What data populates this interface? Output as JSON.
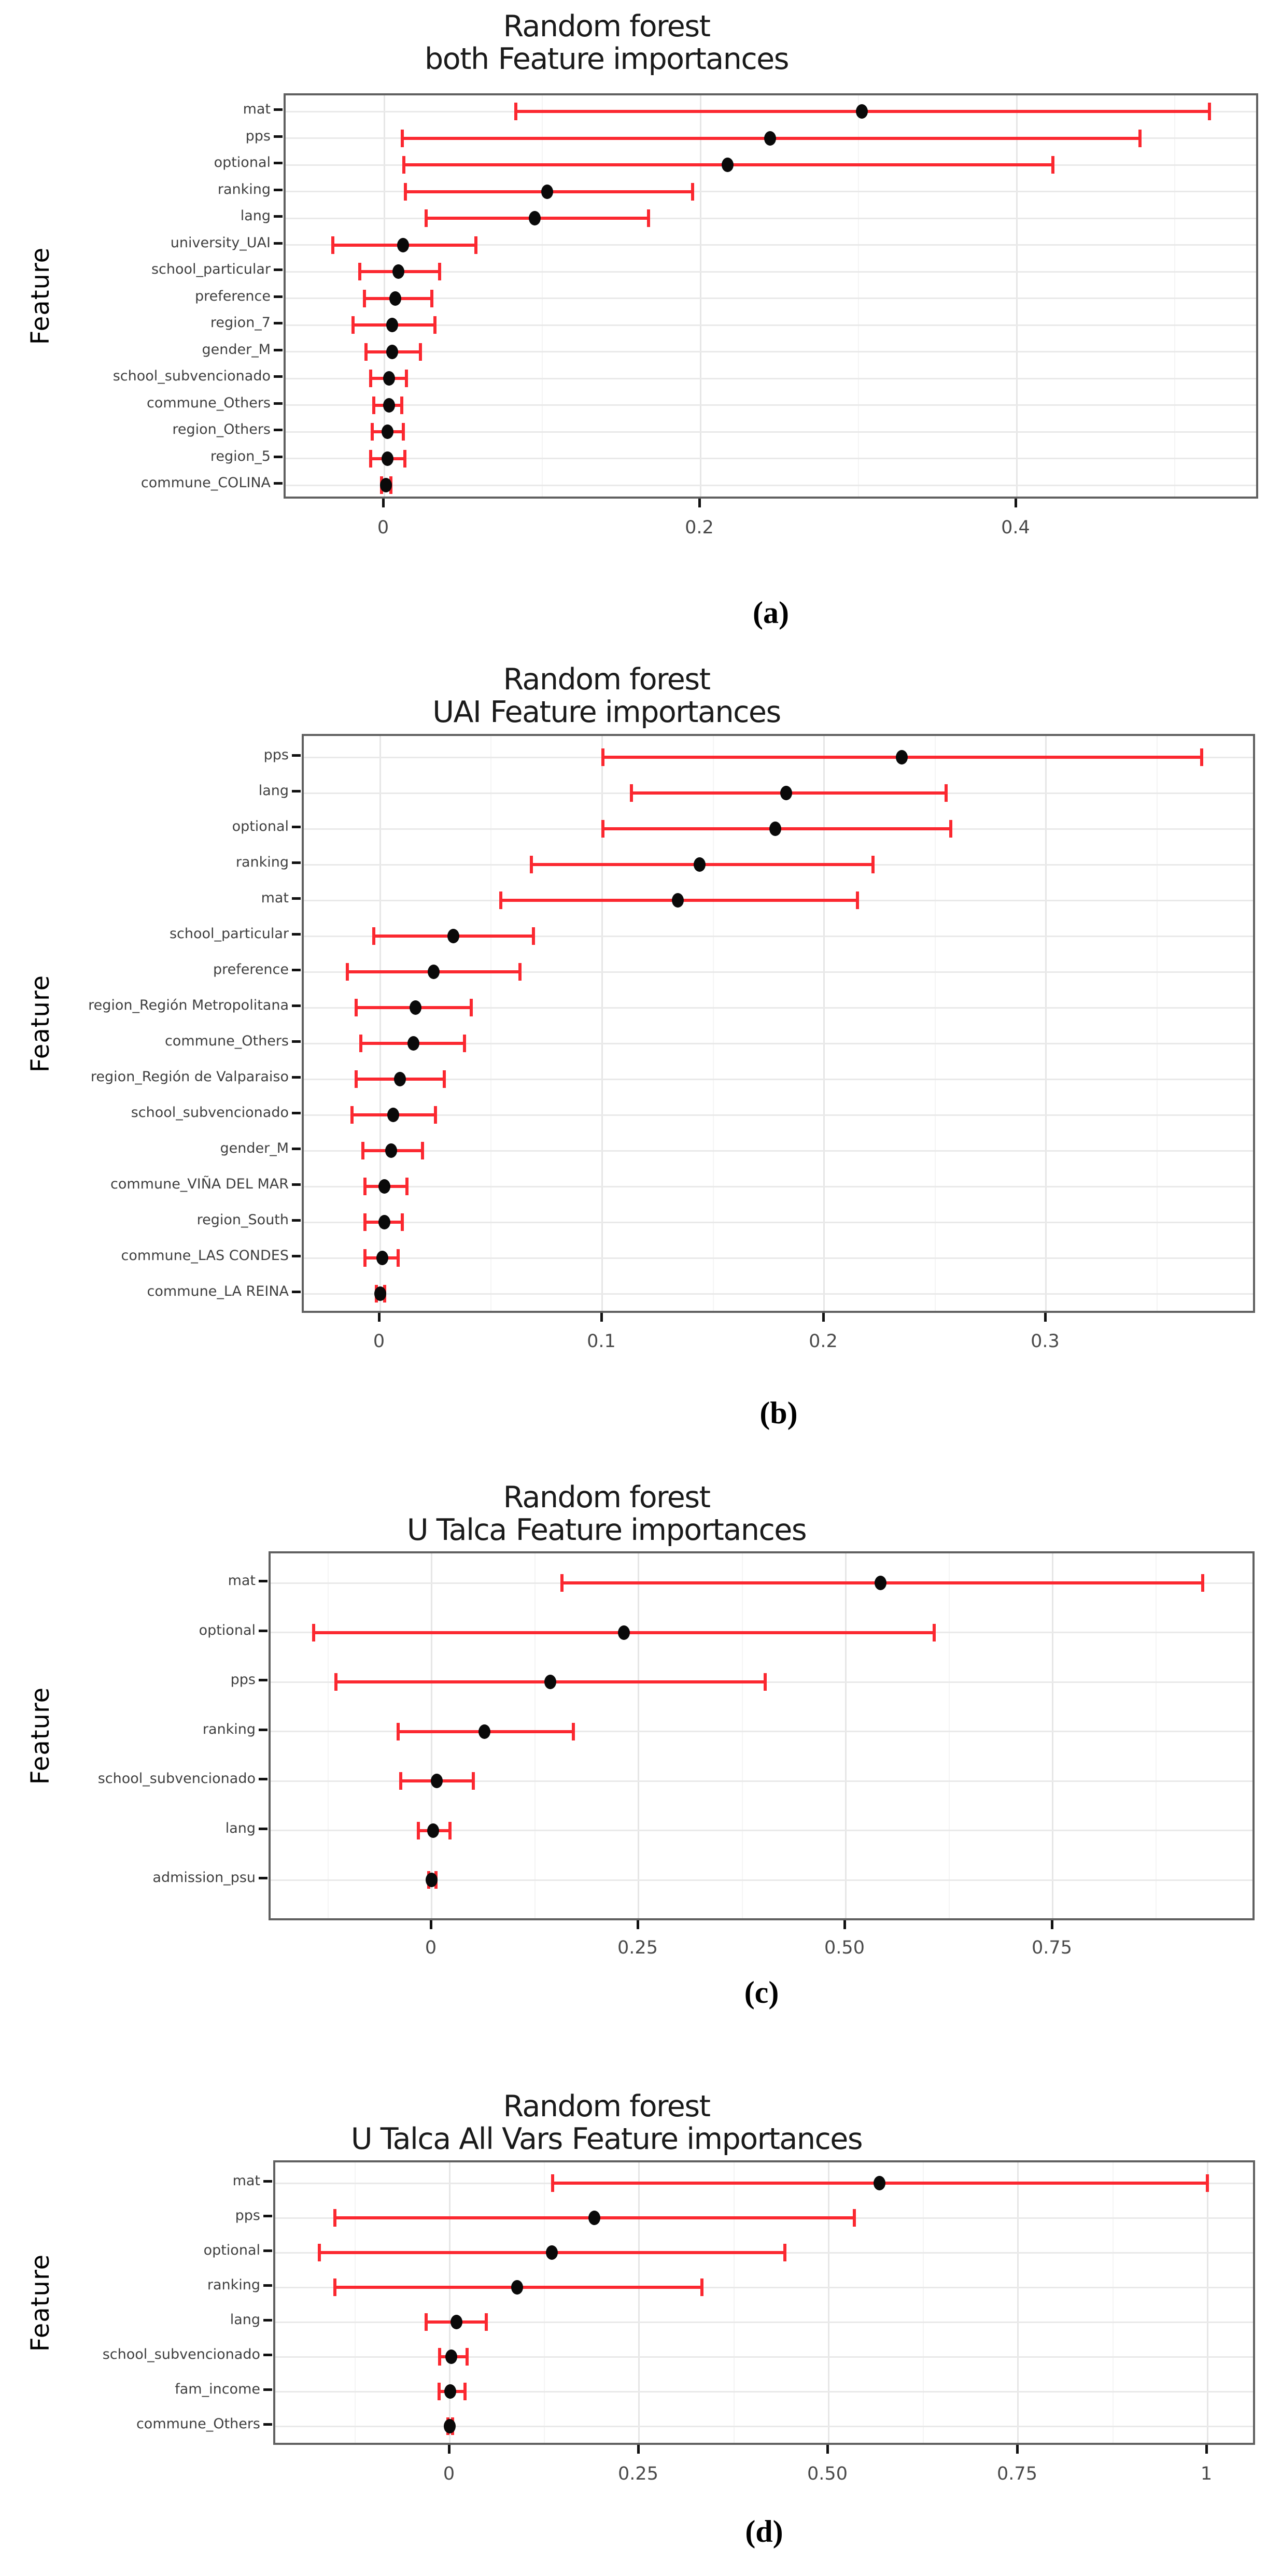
{
  "page": {
    "background": "#ffffff"
  },
  "colors": {
    "errorbar_red": "#FB2830",
    "dot_black": "#0a0a0a",
    "grid_major_v": "#E6E6E6",
    "grid_minor_v": "#F4F4F4",
    "grid_row_h": "#E9E9E9",
    "panel_border": "#606060",
    "tick_mark": "#111111",
    "y_label_gray": "#3F3F3F",
    "x_label_gray": "#4A4A4A",
    "title_black": "#1A1A1A"
  },
  "chart_data": [
    {
      "id": "a",
      "type": "scatter",
      "title_line1": "Random forest",
      "subtitle_prefix": "both",
      "subtitle_main": "Feature importances",
      "caption": "(a)",
      "ylabel": "Feature",
      "xlabel": "",
      "xlim": [
        -0.0624,
        0.5514
      ],
      "grid": true,
      "legend": "none",
      "xticks": [
        {
          "value": 0,
          "label": "0"
        },
        {
          "value": 0.2,
          "label": "0.2"
        },
        {
          "value": 0.4,
          "label": "0.4"
        }
      ],
      "xminor": [
        0.1,
        0.3,
        0.5
      ],
      "features": [
        {
          "label": "mat",
          "value": 0.302,
          "low": 0.083,
          "high": 0.522
        },
        {
          "label": "pps",
          "value": 0.244,
          "low": 0.011,
          "high": 0.478
        },
        {
          "label": "optional",
          "value": 0.217,
          "low": 0.012,
          "high": 0.423
        },
        {
          "label": "ranking",
          "value": 0.103,
          "low": 0.013,
          "high": 0.195
        },
        {
          "label": "lang",
          "value": 0.095,
          "low": 0.026,
          "high": 0.167
        },
        {
          "label": "university_UAI",
          "value": 0.012,
          "low": -0.033,
          "high": 0.058
        },
        {
          "label": "school_particular",
          "value": 0.009,
          "low": -0.016,
          "high": 0.035
        },
        {
          "label": "preference",
          "value": 0.007,
          "low": -0.013,
          "high": 0.03
        },
        {
          "label": "region_7",
          "value": 0.005,
          "low": -0.02,
          "high": 0.032
        },
        {
          "label": "gender_M",
          "value": 0.005,
          "low": -0.012,
          "high": 0.023
        },
        {
          "label": "school_subvencionado",
          "value": 0.003,
          "low": -0.009,
          "high": 0.014
        },
        {
          "label": "commune_Others",
          "value": 0.003,
          "low": -0.007,
          "high": 0.011
        },
        {
          "label": "region_Others",
          "value": 0.002,
          "low": -0.008,
          "high": 0.012
        },
        {
          "label": "region_5",
          "value": 0.002,
          "low": -0.009,
          "high": 0.013
        },
        {
          "label": "commune_COLINA",
          "value": 0.001,
          "low": -0.002,
          "high": 0.004
        }
      ]
    },
    {
      "id": "b",
      "type": "scatter",
      "title_line1": "Random forest",
      "subtitle_prefix": "UAI",
      "subtitle_main": "Feature importances",
      "caption": "(b)",
      "ylabel": "Feature",
      "xlabel": "",
      "xlim": [
        -0.0344,
        0.3932
      ],
      "grid": true,
      "legend": "none",
      "xticks": [
        {
          "value": 0,
          "label": "0"
        },
        {
          "value": 0.1,
          "label": "0.1"
        },
        {
          "value": 0.2,
          "label": "0.2"
        },
        {
          "value": 0.3,
          "label": "0.3"
        }
      ],
      "xminor": [
        0.05,
        0.15,
        0.25,
        0.35
      ],
      "features": [
        {
          "label": "pps",
          "value": 0.235,
          "low": 0.1,
          "high": 0.37
        },
        {
          "label": "lang",
          "value": 0.183,
          "low": 0.113,
          "high": 0.255
        },
        {
          "label": "optional",
          "value": 0.178,
          "low": 0.1,
          "high": 0.257
        },
        {
          "label": "ranking",
          "value": 0.144,
          "low": 0.068,
          "high": 0.222
        },
        {
          "label": "mat",
          "value": 0.134,
          "low": 0.054,
          "high": 0.215
        },
        {
          "label": "school_particular",
          "value": 0.033,
          "low": -0.003,
          "high": 0.069
        },
        {
          "label": "preference",
          "value": 0.024,
          "low": -0.015,
          "high": 0.063
        },
        {
          "label": "region_Región Metropolitana",
          "value": 0.016,
          "low": -0.011,
          "high": 0.041
        },
        {
          "label": "commune_Others",
          "value": 0.015,
          "low": -0.009,
          "high": 0.038
        },
        {
          "label": "region_Región de Valparaiso",
          "value": 0.009,
          "low": -0.011,
          "high": 0.029
        },
        {
          "label": "school_subvencionado",
          "value": 0.006,
          "low": -0.013,
          "high": 0.025
        },
        {
          "label": "gender_M",
          "value": 0.005,
          "low": -0.008,
          "high": 0.019
        },
        {
          "label": "commune_VIÑA DEL MAR",
          "value": 0.002,
          "low": -0.007,
          "high": 0.012
        },
        {
          "label": "region_South",
          "value": 0.002,
          "low": -0.007,
          "high": 0.01
        },
        {
          "label": "commune_LAS CONDES",
          "value": 0.001,
          "low": -0.007,
          "high": 0.008
        },
        {
          "label": "commune_LA REINA",
          "value": 0.0,
          "low": -0.002,
          "high": 0.002
        }
      ]
    },
    {
      "id": "c",
      "type": "scatter",
      "title_line1": "Random forest",
      "subtitle_prefix": "U Talca",
      "subtitle_main": "Feature importances",
      "caption": "(c)",
      "ylabel": "Feature",
      "xlabel": "",
      "xlim": [
        -0.1945,
        0.9913
      ],
      "grid": true,
      "legend": "none",
      "xticks": [
        {
          "value": 0,
          "label": "0"
        },
        {
          "value": 0.25,
          "label": "0.25"
        },
        {
          "value": 0.5,
          "label": "0.50"
        },
        {
          "value": 0.75,
          "label": "0.75"
        }
      ],
      "xminor": [
        -0.125,
        0.125,
        0.375,
        0.625,
        0.875
      ],
      "features": [
        {
          "label": "mat",
          "value": 0.542,
          "low": 0.157,
          "high": 0.931
        },
        {
          "label": "optional",
          "value": 0.232,
          "low": -0.143,
          "high": 0.607
        },
        {
          "label": "pps",
          "value": 0.143,
          "low": -0.116,
          "high": 0.403
        },
        {
          "label": "ranking",
          "value": 0.064,
          "low": -0.041,
          "high": 0.171
        },
        {
          "label": "school_subvencionado",
          "value": 0.006,
          "low": -0.038,
          "high": 0.05
        },
        {
          "label": "lang",
          "value": 0.002,
          "low": -0.017,
          "high": 0.022
        },
        {
          "label": "admission_psu",
          "value": 0.0,
          "low": -0.004,
          "high": 0.005
        }
      ]
    },
    {
      "id": "d",
      "type": "scatter",
      "title_line1": "Random forest",
      "subtitle_prefix": "U Talca All Vars",
      "subtitle_main": "Feature importances",
      "caption": "(d)",
      "ylabel": "Feature",
      "xlabel": "",
      "xlim": [
        -0.2302,
        1.06
      ],
      "grid": true,
      "legend": "none",
      "xticks": [
        {
          "value": 0,
          "label": "0"
        },
        {
          "value": 0.25,
          "label": "0.25"
        },
        {
          "value": 0.5,
          "label": "0.50"
        },
        {
          "value": 0.75,
          "label": "0.75"
        },
        {
          "value": 1,
          "label": "1"
        }
      ],
      "xminor": [
        -0.125,
        0.125,
        0.375,
        0.625,
        0.875
      ],
      "features": [
        {
          "label": "mat",
          "value": 0.567,
          "low": 0.135,
          "high": 1.0
        },
        {
          "label": "pps",
          "value": 0.191,
          "low": -0.152,
          "high": 0.534
        },
        {
          "label": "optional",
          "value": 0.135,
          "low": -0.173,
          "high": 0.442
        },
        {
          "label": "ranking",
          "value": 0.089,
          "low": -0.152,
          "high": 0.333
        },
        {
          "label": "lang",
          "value": 0.009,
          "low": -0.032,
          "high": 0.048
        },
        {
          "label": "school_subvencionado",
          "value": 0.002,
          "low": -0.014,
          "high": 0.023
        },
        {
          "label": "fam_income",
          "value": 0.001,
          "low": -0.015,
          "high": 0.02
        },
        {
          "label": "commune_Others",
          "value": 0.0,
          "low": -0.003,
          "high": 0.004
        }
      ]
    }
  ]
}
